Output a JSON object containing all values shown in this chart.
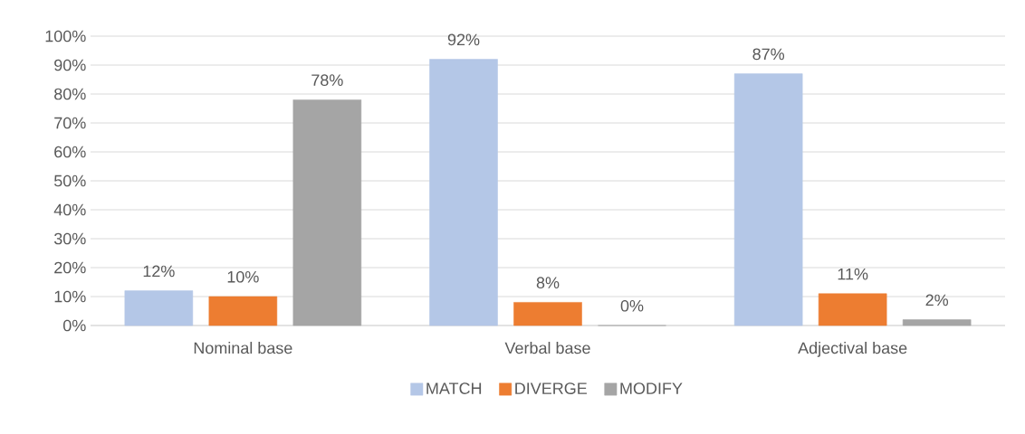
{
  "chart_data": {
    "type": "bar",
    "categories": [
      "Nominal base",
      "Verbal base",
      "Adjectival base"
    ],
    "series": [
      {
        "name": "MATCH",
        "color": "#b4c7e7",
        "values": [
          12,
          92,
          87
        ],
        "value_labels": [
          "12%",
          "92%",
          "87%"
        ]
      },
      {
        "name": "DIVERGE",
        "color": "#ed7d31",
        "values": [
          10,
          8,
          11
        ],
        "value_labels": [
          "10%",
          "8%",
          "11%"
        ]
      },
      {
        "name": "MODIFY",
        "color": "#a5a5a5",
        "values": [
          78,
          0,
          2
        ],
        "value_labels": [
          "78%",
          "0%",
          "2%"
        ]
      }
    ],
    "ylim": [
      0,
      100
    ],
    "yticks": [
      {
        "value": 0,
        "label": "0%"
      },
      {
        "value": 10,
        "label": "10%"
      },
      {
        "value": 20,
        "label": "20%"
      },
      {
        "value": 30,
        "label": "30%"
      },
      {
        "value": 40,
        "label": "40%"
      },
      {
        "value": 50,
        "label": "50%"
      },
      {
        "value": 60,
        "label": "60%"
      },
      {
        "value": 70,
        "label": "70%"
      },
      {
        "value": 80,
        "label": "80%"
      },
      {
        "value": 90,
        "label": "90%"
      },
      {
        "value": 100,
        "label": "100%"
      }
    ],
    "grid": "y",
    "legend": "bottom"
  }
}
